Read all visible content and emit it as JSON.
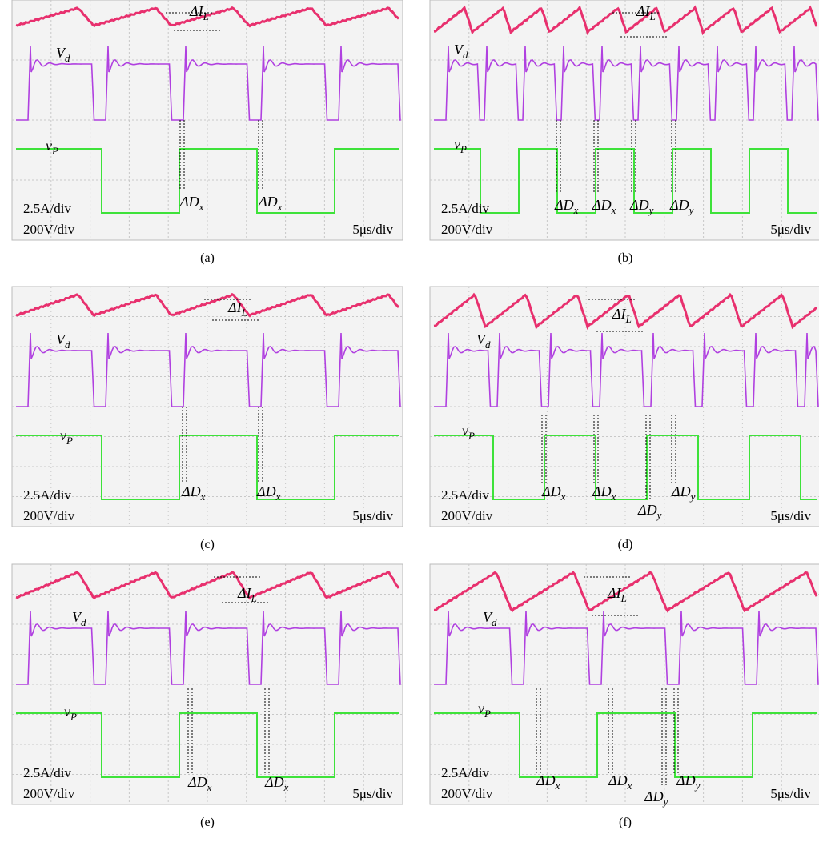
{
  "panels": [
    {
      "caption": "(a)",
      "current": {
        "main": "ΔI",
        "sub": "L"
      },
      "vd": {
        "main": "V",
        "sub": "d"
      },
      "vp": {
        "main": "v",
        "sub": "P"
      },
      "scale_current": "2.5A/div",
      "scale_voltage": "200V/div",
      "time_scale": "5μs/div",
      "annotations": [
        {
          "main": "ΔD",
          "sub": "x"
        },
        {
          "main": "ΔD",
          "sub": "x"
        }
      ]
    },
    {
      "caption": "(b)",
      "current": {
        "main": "ΔI",
        "sub": "L"
      },
      "vd": {
        "main": "V",
        "sub": "d"
      },
      "vp": {
        "main": "v",
        "sub": "P"
      },
      "scale_current": "2.5A/div",
      "scale_voltage": "200V/div",
      "time_scale": "5μs/div",
      "annotations": [
        {
          "main": "ΔD",
          "sub": "x"
        },
        {
          "main": "ΔD",
          "sub": "x"
        },
        {
          "main": "ΔD",
          "sub": "y"
        },
        {
          "main": "ΔD",
          "sub": "y"
        }
      ]
    },
    {
      "caption": "(c)",
      "current": {
        "main": "ΔI",
        "sub": "L"
      },
      "vd": {
        "main": "V",
        "sub": "d"
      },
      "vp": {
        "main": "v",
        "sub": "P"
      },
      "scale_current": "2.5A/div",
      "scale_voltage": "200V/div",
      "time_scale": "5μs/div",
      "annotations": [
        {
          "main": "ΔD",
          "sub": "x"
        },
        {
          "main": "ΔD",
          "sub": "x"
        }
      ]
    },
    {
      "caption": "(d)",
      "current": {
        "main": "ΔI",
        "sub": "L"
      },
      "vd": {
        "main": "V",
        "sub": "d"
      },
      "vp": {
        "main": "v",
        "sub": "P"
      },
      "scale_current": "2.5A/div",
      "scale_voltage": "200V/div",
      "time_scale": "5μs/div",
      "annotations": [
        {
          "main": "ΔD",
          "sub": "x"
        },
        {
          "main": "ΔD",
          "sub": "x"
        },
        {
          "main": "ΔD",
          "sub": "y"
        },
        {
          "main": "ΔD",
          "sub": "y"
        }
      ]
    },
    {
      "caption": "(e)",
      "current": {
        "main": "ΔI",
        "sub": "L"
      },
      "vd": {
        "main": "V",
        "sub": "d"
      },
      "vp": {
        "main": "v",
        "sub": "P"
      },
      "scale_current": "2.5A/div",
      "scale_voltage": "200V/div",
      "time_scale": "5μs/div",
      "annotations": [
        {
          "main": "ΔD",
          "sub": "x"
        },
        {
          "main": "ΔD",
          "sub": "x"
        }
      ]
    },
    {
      "caption": "(f)",
      "current": {
        "main": "ΔI",
        "sub": "L"
      },
      "vd": {
        "main": "V",
        "sub": "d"
      },
      "vp": {
        "main": "v",
        "sub": "P"
      },
      "scale_current": "2.5A/div",
      "scale_voltage": "200V/div",
      "time_scale": "5μs/div",
      "annotations": [
        {
          "main": "ΔD",
          "sub": "x"
        },
        {
          "main": "ΔD",
          "sub": "x"
        },
        {
          "main": "ΔD",
          "sub": "y"
        },
        {
          "main": "ΔD",
          "sub": "y"
        }
      ]
    }
  ]
}
